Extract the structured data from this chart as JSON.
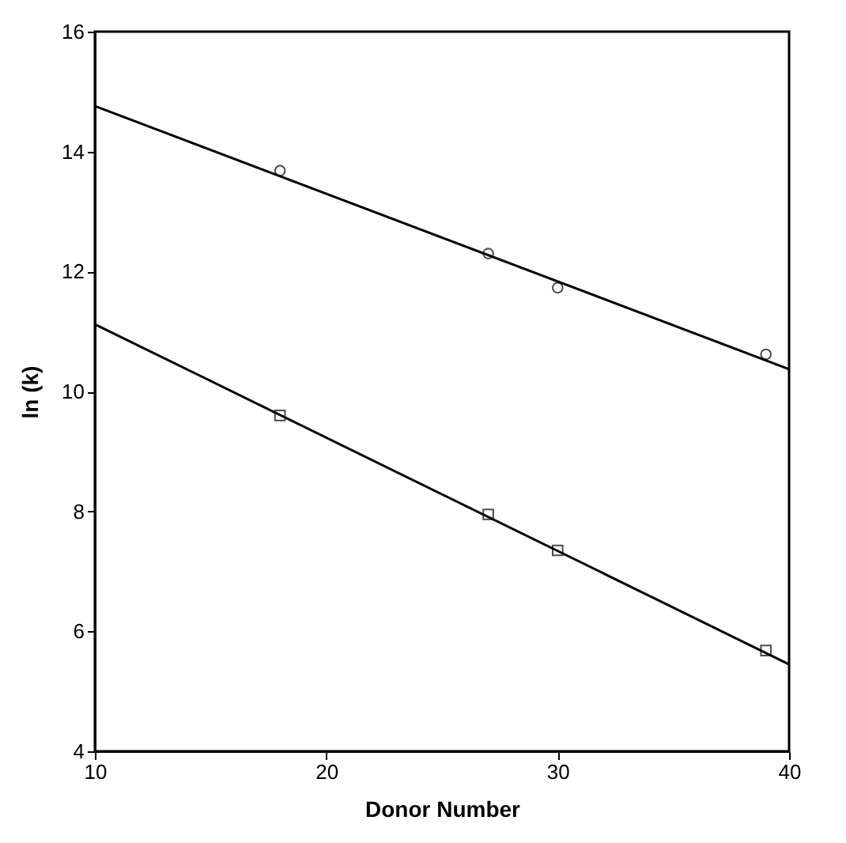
{
  "chart_data": {
    "type": "scatter",
    "xlabel": "Donor Number",
    "ylabel": "ln (k)",
    "xlim": [
      10,
      40
    ],
    "xticks": [
      10,
      20,
      30,
      40
    ],
    "ylim": [
      4,
      16
    ],
    "yticks": [
      4,
      6,
      8,
      10,
      12,
      14,
      16
    ],
    "grid": false,
    "series": [
      {
        "marker": "circle",
        "color": "#000000",
        "x": [
          18,
          27,
          30,
          39
        ],
        "values": [
          13.68,
          12.3,
          11.73,
          10.62
        ]
      },
      {
        "marker": "square",
        "color": "#000000",
        "x": [
          18,
          27,
          30,
          39
        ],
        "values": [
          9.6,
          7.95,
          7.35,
          5.68
        ]
      },
      {
        "type": "line",
        "marker": "none",
        "line_style": "solid",
        "color": "#000000",
        "x": [
          10,
          40
        ],
        "values": [
          14.76,
          10.37
        ]
      },
      {
        "type": "line",
        "marker": "none",
        "line_style": "solid",
        "color": "#000000",
        "x": [
          10,
          40
        ],
        "values": [
          11.12,
          5.45
        ]
      }
    ]
  }
}
